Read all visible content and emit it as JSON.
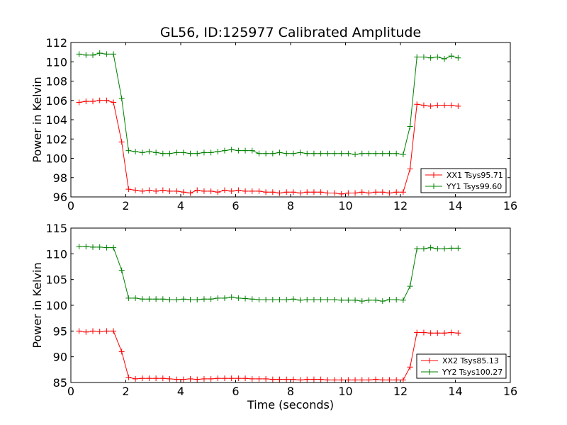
{
  "chart_data": [
    {
      "type": "line",
      "title": "GL56, ID:125977 Calibrated Amplitude",
      "xlabel": "",
      "ylabel": "Power in Kelvin",
      "xlim": [
        0,
        16
      ],
      "ylim": [
        96,
        112
      ],
      "xticks": [
        0,
        2,
        4,
        6,
        8,
        10,
        12,
        14,
        16
      ],
      "yticks": [
        96,
        98,
        100,
        102,
        104,
        106,
        108,
        110,
        112
      ],
      "grid": false,
      "legend": "bottom-right",
      "series": [
        {
          "name": "XX1 Tsys95.71",
          "color": "#ff0000",
          "x": [
            0.3,
            0.55,
            0.8,
            1.05,
            1.3,
            1.55,
            1.85,
            2.1,
            2.35,
            2.6,
            2.85,
            3.1,
            3.35,
            3.6,
            3.85,
            4.1,
            4.35,
            4.6,
            4.85,
            5.1,
            5.35,
            5.6,
            5.85,
            6.1,
            6.35,
            6.6,
            6.85,
            7.1,
            7.35,
            7.6,
            7.85,
            8.1,
            8.35,
            8.6,
            8.85,
            9.1,
            9.35,
            9.6,
            9.85,
            10.1,
            10.35,
            10.6,
            10.85,
            11.1,
            11.35,
            11.6,
            11.85,
            12.1,
            12.35,
            12.6,
            12.85,
            13.1,
            13.35,
            13.6,
            13.85,
            14.1
          ],
          "values": [
            105.8,
            105.9,
            105.9,
            106.0,
            106.0,
            105.8,
            101.7,
            96.8,
            96.7,
            96.6,
            96.7,
            96.6,
            96.7,
            96.6,
            96.6,
            96.5,
            96.4,
            96.7,
            96.6,
            96.6,
            96.5,
            96.7,
            96.6,
            96.7,
            96.6,
            96.6,
            96.6,
            96.5,
            96.5,
            96.4,
            96.5,
            96.5,
            96.4,
            96.5,
            96.5,
            96.5,
            96.4,
            96.4,
            96.3,
            96.4,
            96.4,
            96.5,
            96.4,
            96.5,
            96.5,
            96.4,
            96.5,
            96.5,
            98.9,
            105.6,
            105.5,
            105.4,
            105.5,
            105.5,
            105.5,
            105.4
          ]
        },
        {
          "name": "YY1 Tsys99.60",
          "color": "#008000",
          "x": [
            0.3,
            0.55,
            0.8,
            1.05,
            1.3,
            1.55,
            1.85,
            2.1,
            2.35,
            2.6,
            2.85,
            3.1,
            3.35,
            3.6,
            3.85,
            4.1,
            4.35,
            4.6,
            4.85,
            5.1,
            5.35,
            5.6,
            5.85,
            6.1,
            6.35,
            6.6,
            6.85,
            7.1,
            7.35,
            7.6,
            7.85,
            8.1,
            8.35,
            8.6,
            8.85,
            9.1,
            9.35,
            9.6,
            9.85,
            10.1,
            10.35,
            10.6,
            10.85,
            11.1,
            11.35,
            11.6,
            11.85,
            12.1,
            12.35,
            12.6,
            12.85,
            13.1,
            13.35,
            13.6,
            13.85,
            14.1
          ],
          "values": [
            110.8,
            110.7,
            110.7,
            110.9,
            110.8,
            110.8,
            106.2,
            100.8,
            100.7,
            100.6,
            100.7,
            100.6,
            100.5,
            100.5,
            100.6,
            100.6,
            100.5,
            100.5,
            100.6,
            100.6,
            100.7,
            100.8,
            100.9,
            100.8,
            100.8,
            100.8,
            100.5,
            100.5,
            100.5,
            100.6,
            100.5,
            100.5,
            100.6,
            100.5,
            100.5,
            100.5,
            100.5,
            100.5,
            100.5,
            100.5,
            100.4,
            100.5,
            100.5,
            100.5,
            100.5,
            100.5,
            100.5,
            100.4,
            103.3,
            110.5,
            110.5,
            110.4,
            110.5,
            110.3,
            110.6,
            110.4
          ]
        }
      ]
    },
    {
      "type": "line",
      "title": "",
      "xlabel": "Time (seconds)",
      "ylabel": "Power in Kelvin",
      "xlim": [
        0,
        16
      ],
      "ylim": [
        85,
        115
      ],
      "xticks": [
        0,
        2,
        4,
        6,
        8,
        10,
        12,
        14,
        16
      ],
      "yticks": [
        85,
        90,
        95,
        100,
        105,
        110,
        115
      ],
      "grid": false,
      "legend": "bottom-right",
      "series": [
        {
          "name": "XX2 Tsys85.13",
          "color": "#ff0000",
          "x": [
            0.3,
            0.55,
            0.8,
            1.05,
            1.3,
            1.55,
            1.85,
            2.1,
            2.35,
            2.6,
            2.85,
            3.1,
            3.35,
            3.6,
            3.85,
            4.1,
            4.35,
            4.6,
            4.85,
            5.1,
            5.35,
            5.6,
            5.85,
            6.1,
            6.35,
            6.6,
            6.85,
            7.1,
            7.35,
            7.6,
            7.85,
            8.1,
            8.35,
            8.6,
            8.85,
            9.1,
            9.35,
            9.6,
            9.85,
            10.1,
            10.35,
            10.6,
            10.85,
            11.1,
            11.35,
            11.6,
            11.85,
            12.1,
            12.35,
            12.6,
            12.85,
            13.1,
            13.35,
            13.6,
            13.85,
            14.1
          ],
          "values": [
            95.0,
            94.8,
            95.0,
            94.9,
            95.0,
            95.0,
            91.0,
            86.0,
            85.7,
            85.8,
            85.8,
            85.8,
            85.8,
            85.7,
            85.6,
            85.6,
            85.7,
            85.6,
            85.7,
            85.7,
            85.8,
            85.8,
            85.8,
            85.8,
            85.8,
            85.7,
            85.7,
            85.7,
            85.6,
            85.6,
            85.6,
            85.6,
            85.5,
            85.6,
            85.6,
            85.6,
            85.5,
            85.5,
            85.5,
            85.5,
            85.5,
            85.5,
            85.5,
            85.6,
            85.5,
            85.5,
            85.5,
            85.5,
            88.0,
            94.7,
            94.7,
            94.6,
            94.6,
            94.6,
            94.7,
            94.6
          ]
        },
        {
          "name": "YY2 Tsys100.27",
          "color": "#008000",
          "x": [
            0.3,
            0.55,
            0.8,
            1.05,
            1.3,
            1.55,
            1.85,
            2.1,
            2.35,
            2.6,
            2.85,
            3.1,
            3.35,
            3.6,
            3.85,
            4.1,
            4.35,
            4.6,
            4.85,
            5.1,
            5.35,
            5.6,
            5.85,
            6.1,
            6.35,
            6.6,
            6.85,
            7.1,
            7.35,
            7.6,
            7.85,
            8.1,
            8.35,
            8.6,
            8.85,
            9.1,
            9.35,
            9.6,
            9.85,
            10.1,
            10.35,
            10.6,
            10.85,
            11.1,
            11.35,
            11.6,
            11.85,
            12.1,
            12.35,
            12.6,
            12.85,
            13.1,
            13.35,
            13.6,
            13.85,
            14.1
          ],
          "values": [
            111.4,
            111.4,
            111.3,
            111.3,
            111.2,
            111.2,
            106.8,
            101.4,
            101.4,
            101.2,
            101.2,
            101.2,
            101.2,
            101.1,
            101.1,
            101.2,
            101.1,
            101.1,
            101.2,
            101.2,
            101.4,
            101.4,
            101.6,
            101.4,
            101.3,
            101.2,
            101.1,
            101.1,
            101.1,
            101.1,
            101.1,
            101.2,
            101.0,
            101.1,
            101.1,
            101.1,
            101.1,
            101.1,
            101.0,
            101.0,
            101.0,
            100.8,
            101.0,
            101.0,
            100.8,
            101.1,
            101.1,
            101.0,
            103.7,
            111.0,
            111.0,
            111.2,
            111.0,
            111.0,
            111.1,
            111.1
          ]
        }
      ]
    }
  ]
}
